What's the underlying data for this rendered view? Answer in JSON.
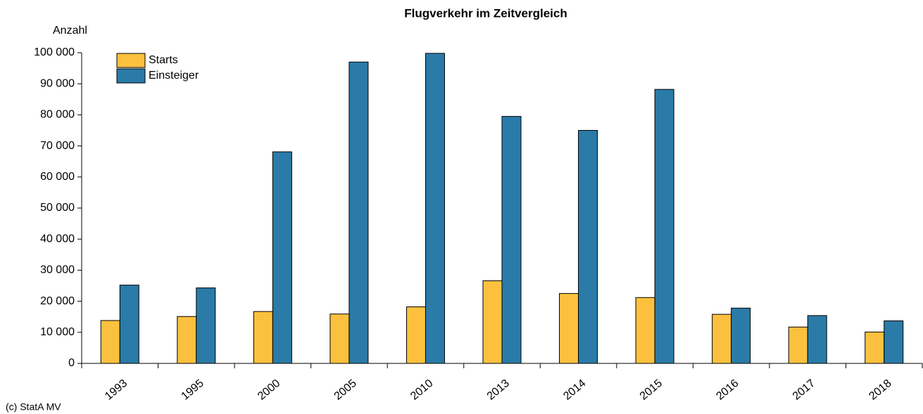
{
  "chart_data": {
    "type": "bar",
    "title": "Flugverkehr im Zeitvergleich",
    "y_label": "Anzahl",
    "source": "(c) StatA MV",
    "categories": [
      "1993",
      "1995",
      "2000",
      "2005",
      "2010",
      "2013",
      "2014",
      "2015",
      "2016",
      "2017",
      "2018"
    ],
    "series": [
      {
        "name": "Starts",
        "color": "#fbc13e",
        "values": [
          13800,
          15100,
          16700,
          15900,
          18200,
          26600,
          22500,
          21200,
          15800,
          11700,
          10100
        ]
      },
      {
        "name": "Einsteiger",
        "color": "#2a7ba8",
        "values": [
          25200,
          24300,
          68100,
          97000,
          99800,
          79500,
          75000,
          88200,
          17800,
          15400,
          13700
        ]
      }
    ],
    "ylim": [
      0,
      100000
    ],
    "yticks": [
      0,
      {
        "value": 10000,
        "label": "10 000"
      },
      {
        "value": 20000,
        "label": "20 000"
      },
      {
        "value": 30000,
        "label": "30 000"
      },
      {
        "value": 40000,
        "label": "40 000"
      },
      {
        "value": 50000,
        "label": "50 000"
      },
      {
        "value": 60000,
        "label": "60 000"
      },
      {
        "value": 70000,
        "label": "70 000"
      },
      {
        "value": 80000,
        "label": "80 000"
      },
      {
        "value": 90000,
        "label": "90 000"
      },
      {
        "value": 100000,
        "label": "100 000"
      }
    ],
    "grid": false,
    "legend": "top-left"
  }
}
